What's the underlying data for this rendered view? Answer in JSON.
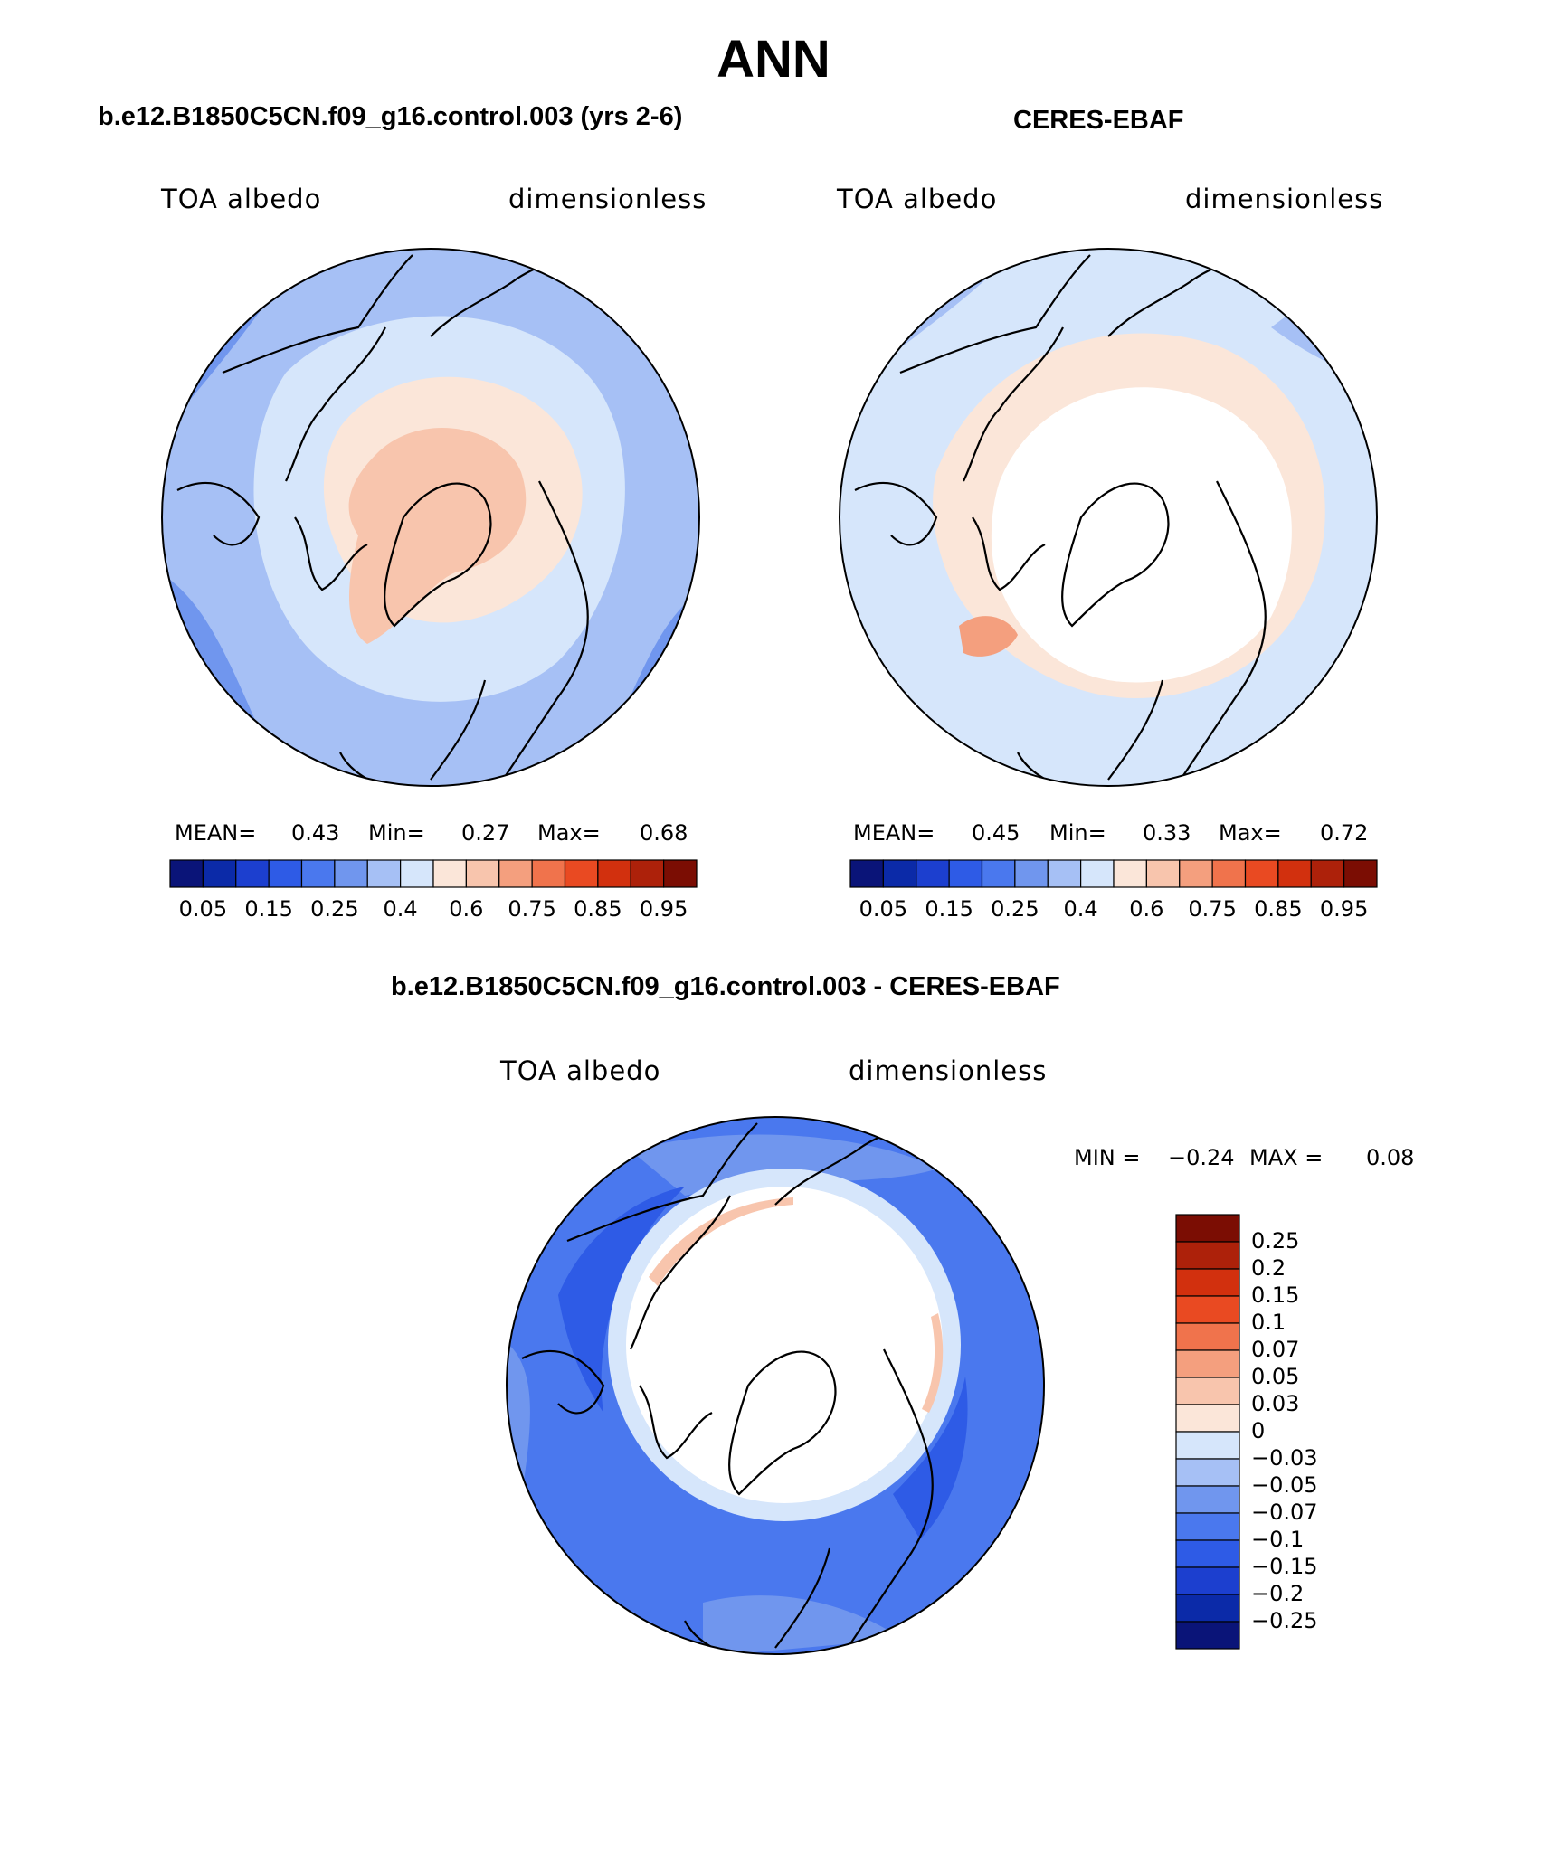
{
  "page": {
    "main_title": "ANN"
  },
  "panel_model": {
    "title": "b.e12.B1850C5CN.f09_g16.control.003 (yrs 2-6)",
    "left_label": "TOA albedo",
    "right_label": "dimensionless",
    "stats": {
      "mean_label": "MEAN=",
      "mean": "0.43",
      "min_label": "Min=",
      "min": "0.27",
      "max_label": "Max=",
      "max": "0.68"
    }
  },
  "panel_obs": {
    "title": "CERES-EBAF",
    "left_label": "TOA albedo",
    "right_label": "dimensionless",
    "stats": {
      "mean_label": "MEAN=",
      "mean": "0.45",
      "min_label": "Min=",
      "min": "0.33",
      "max_label": "Max=",
      "max": "0.72"
    }
  },
  "panel_diff": {
    "title": "b.e12.B1850C5CN.f09_g16.control.003 - CERES-EBAF",
    "left_label": "TOA albedo",
    "right_label": "dimensionless",
    "minmax": {
      "min_label": "MIN =",
      "min": "−0.24",
      "max_label": "MAX =",
      "max": "0.08"
    }
  },
  "colorbar_abs": {
    "colors": [
      "#0a1478",
      "#0b2aa8",
      "#1c3fcf",
      "#2e5be6",
      "#4a78ee",
      "#7096ee",
      "#a6c0f5",
      "#d6e6fb",
      "#fbe6d9",
      "#f8c5ad",
      "#f49f7e",
      "#f0734c",
      "#e94a22",
      "#d2300e",
      "#ad210a",
      "#7b0d03"
    ],
    "tick_labels": [
      "0.05",
      "0.15",
      "0.25",
      "0.4",
      "0.6",
      "0.75",
      "0.85",
      "0.95"
    ]
  },
  "colorbar_diff": {
    "colors_top_to_bottom": [
      "#7b0d03",
      "#ad210a",
      "#d2300e",
      "#e94a22",
      "#f0734c",
      "#f49f7e",
      "#f8c5ad",
      "#fbe6d9",
      "#d6e6fb",
      "#a6c0f5",
      "#7096ee",
      "#4a78ee",
      "#2e5be6",
      "#1c3fcf",
      "#0b2aa8",
      "#0a1478"
    ],
    "tick_labels_top_to_bottom": [
      "0.25",
      "0.2",
      "0.15",
      "0.1",
      "0.07",
      "0.05",
      "0.03",
      "0",
      "−0.03",
      "−0.05",
      "−0.07",
      "−0.1",
      "−0.15",
      "−0.2",
      "−0.25"
    ]
  }
}
